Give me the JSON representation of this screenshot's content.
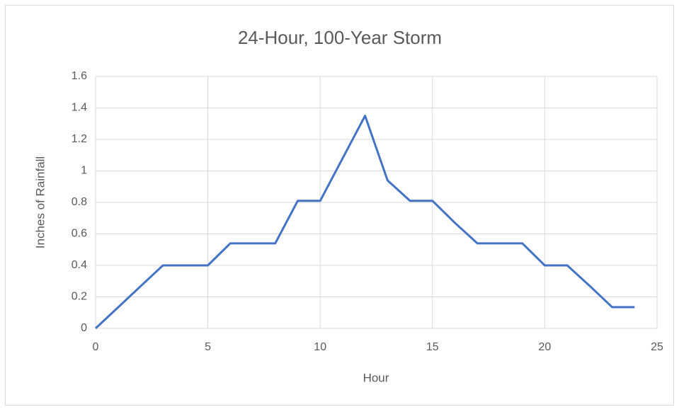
{
  "chart_data": {
    "type": "line",
    "title": "24-Hour, 100-Year Storm",
    "x_label": "Hour",
    "y_label": "Inches of Rainfall",
    "x": [
      0,
      1,
      2,
      3,
      4,
      5,
      6,
      7,
      8,
      9,
      10,
      11,
      12,
      13,
      14,
      15,
      16,
      17,
      18,
      19,
      20,
      21,
      22,
      23,
      24
    ],
    "series": [
      {
        "name": "Rainfall",
        "color": "#4472c4",
        "values": [
          0,
          0.133,
          0.267,
          0.4,
          0.4,
          0.4,
          0.54,
          0.54,
          0.54,
          0.81,
          0.81,
          1.08,
          1.35,
          0.94,
          0.81,
          0.81,
          0.67,
          0.54,
          0.54,
          0.54,
          0.4,
          0.4,
          0.27,
          0.135,
          0.135
        ]
      }
    ],
    "xlim": [
      0,
      25
    ],
    "xticks": [
      0,
      5,
      10,
      15,
      20,
      25
    ],
    "ylim": [
      0,
      1.6
    ],
    "yticks": [
      0,
      0.2,
      0.4,
      0.6,
      0.8,
      1,
      1.2,
      1.4,
      1.6
    ],
    "grid": true
  }
}
